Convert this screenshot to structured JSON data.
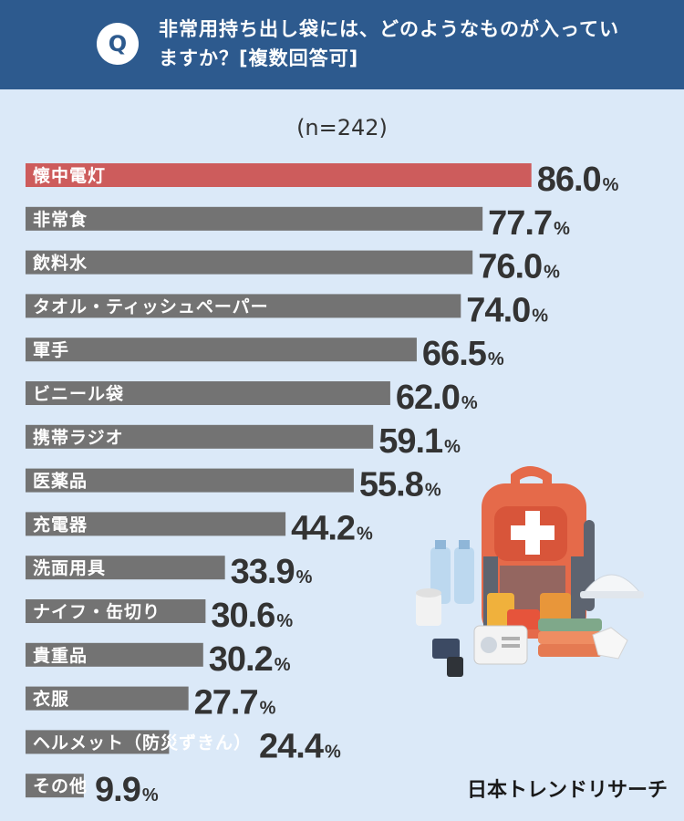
{
  "header": {
    "badge": "Q",
    "question": "非常用持ち出し袋には、どのようなものが入っていますか？[複数回答可]"
  },
  "sample_label": "(n=242)",
  "brand": "日本トレンドリサーチ",
  "colors": {
    "highlight": "#cd5c5c",
    "bar": "#737373",
    "header": "#2d5a8e",
    "background": "#dbe9f8"
  },
  "chart_data": {
    "type": "bar",
    "orientation": "horizontal",
    "categories": [
      "懐中電灯",
      "非常食",
      "飲料水",
      "タオル・ティッシュペーパー",
      "軍手",
      "ビニール袋",
      "携帯ラジオ",
      "医薬品",
      "充電器",
      "洗面用具",
      "ナイフ・缶切り",
      "貴重品",
      "衣服",
      "ヘルメット（防災ずきん）",
      "その他"
    ],
    "values": [
      86.0,
      77.7,
      76.0,
      74.0,
      66.5,
      62.0,
      59.1,
      55.8,
      44.2,
      33.9,
      30.6,
      30.2,
      27.7,
      24.4,
      9.9
    ],
    "value_labels": [
      "86.0",
      "77.7",
      "76.0",
      "74.0",
      "66.5",
      "62.0",
      "59.1",
      "55.8",
      "44.2",
      "33.9",
      "30.6",
      "30.2",
      "27.7",
      "24.4",
      "9.9"
    ],
    "unit": "%",
    "highlight_index": 0
  }
}
